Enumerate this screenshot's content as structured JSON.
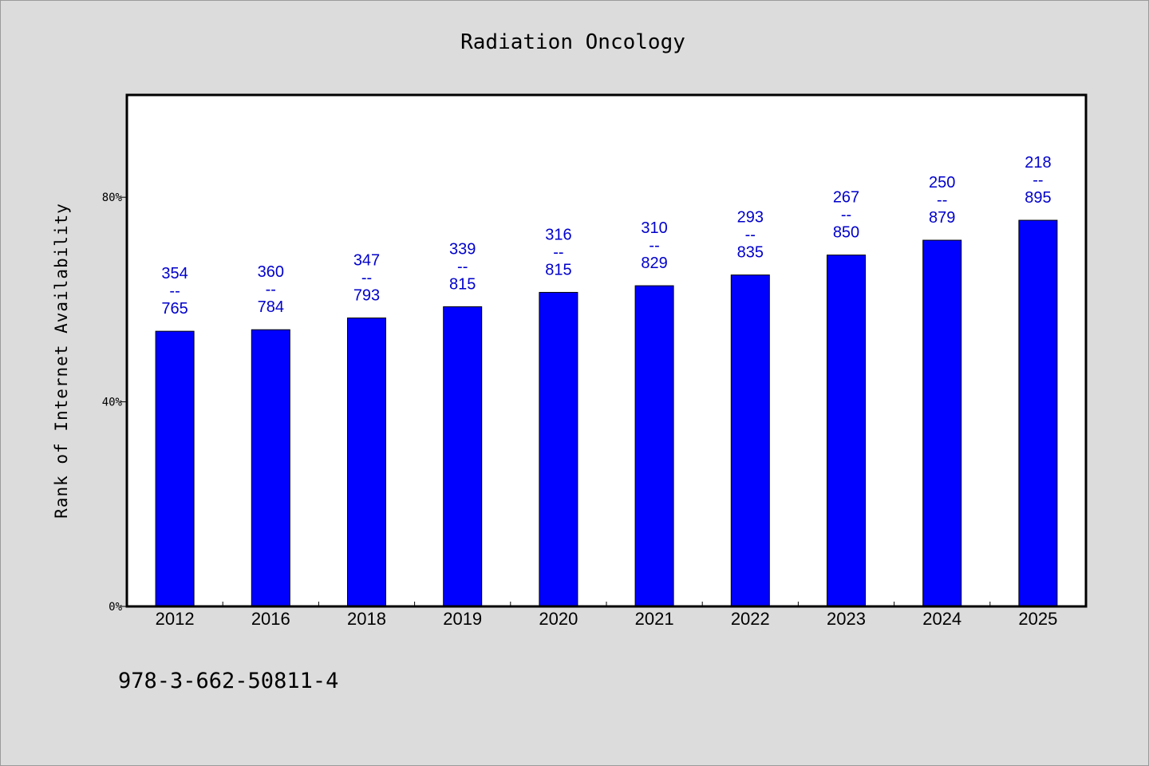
{
  "chart_data": {
    "type": "bar",
    "title": "Radiation Oncology",
    "ylabel": "Rank of Internet Availability",
    "xlabel": "",
    "categories": [
      "2012",
      "2016",
      "2018",
      "2019",
      "2020",
      "2021",
      "2022",
      "2023",
      "2024",
      "2025"
    ],
    "values": [
      53.8,
      54.1,
      56.4,
      58.6,
      61.4,
      62.7,
      64.8,
      68.7,
      71.6,
      75.5
    ],
    "rank": [
      354,
      360,
      347,
      339,
      316,
      310,
      293,
      267,
      250,
      218
    ],
    "total": [
      765,
      784,
      793,
      815,
      815,
      829,
      835,
      850,
      879,
      895
    ],
    "separator": "--",
    "ylim": [
      0,
      100
    ],
    "yticks": [
      0,
      40,
      80
    ],
    "ytick_labels": [
      "0%",
      "40%",
      "80%"
    ],
    "grid": false,
    "colors": {
      "bar": "#0000ff",
      "data_label": "#0000cc",
      "background": "#dcdcdc",
      "plot_bg": "#ffffff"
    }
  },
  "footer": {
    "isbn": "978-3-662-50811-4"
  }
}
